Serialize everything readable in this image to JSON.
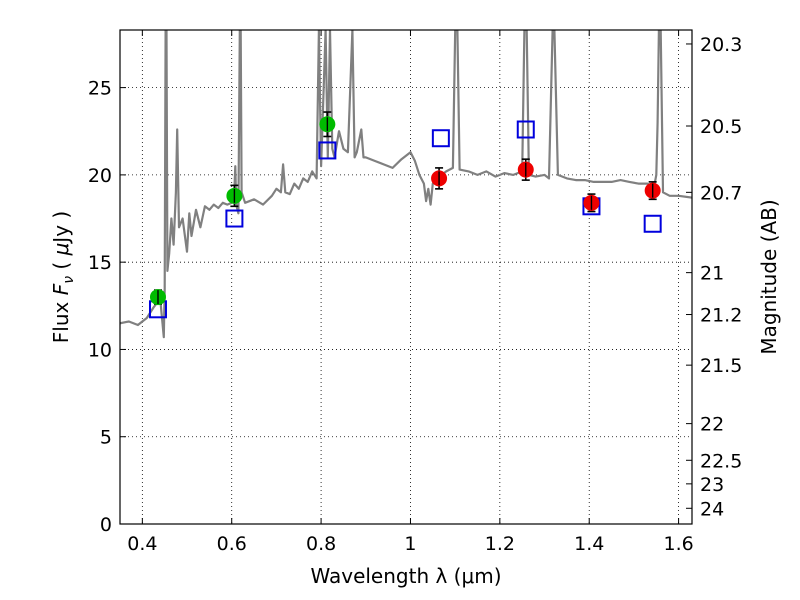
{
  "chart_data": {
    "type": "scatter",
    "xlabel": "Wavelength  λ (μm)",
    "ylabel": "Flux  F_ν  ( μJy )",
    "ylabel_parts": [
      "Flux  ",
      "F",
      "ν",
      "  (  ",
      "μ",
      "Jy )"
    ],
    "ylabel_right": "Magnitude (AB)",
    "xlim": [
      0.35,
      1.63
    ],
    "ylim": [
      0,
      28.3
    ],
    "grid": true,
    "x_ticks": [
      0.4,
      0.6,
      0.8,
      1.0,
      1.2,
      1.4,
      1.6
    ],
    "x_tick_labels": [
      "0.4",
      "0.6",
      "0.8",
      "1",
      "1.2",
      "1.4",
      "1.6"
    ],
    "y_ticks": [
      0,
      5,
      10,
      15,
      20,
      25
    ],
    "y_tick_labels": [
      "0",
      "5",
      "10",
      "15",
      "20",
      "25"
    ],
    "right_ticks": [
      {
        "label": "20.3",
        "flux": 27.5
      },
      {
        "label": "20.5",
        "flux": 22.8
      },
      {
        "label": "20.7",
        "flux": 19.0
      },
      {
        "label": "21",
        "flux": 14.4
      },
      {
        "label": "21.2",
        "flux": 12.0
      },
      {
        "label": "21.5",
        "flux": 9.1
      },
      {
        "label": "22",
        "flux": 5.75
      },
      {
        "label": "22.5",
        "flux": 3.65
      },
      {
        "label": "23",
        "flux": 2.3
      },
      {
        "label": "24",
        "flux": 0.9
      }
    ],
    "series": [
      {
        "marker": "circle",
        "color": "#00bb00",
        "points": [
          {
            "x": 0.435,
            "y": 13.0,
            "err": 0.4
          },
          {
            "x": 0.606,
            "y": 18.8,
            "err": 0.6
          },
          {
            "x": 0.814,
            "y": 22.9,
            "err": 0.7
          }
        ]
      },
      {
        "marker": "circle",
        "color": "#ee0000",
        "points": [
          {
            "x": 1.064,
            "y": 19.8,
            "err": 0.6
          },
          {
            "x": 1.258,
            "y": 20.3,
            "err": 0.6
          },
          {
            "x": 1.405,
            "y": 18.4,
            "err": 0.5
          },
          {
            "x": 1.542,
            "y": 19.1,
            "err": 0.5
          }
        ]
      },
      {
        "marker": "open-square",
        "color": "#0000dd",
        "points": [
          {
            "x": 0.435,
            "y": 12.3
          },
          {
            "x": 0.606,
            "y": 17.5
          },
          {
            "x": 0.814,
            "y": 21.4
          },
          {
            "x": 1.068,
            "y": 22.1
          },
          {
            "x": 1.258,
            "y": 22.6
          },
          {
            "x": 1.405,
            "y": 18.2
          },
          {
            "x": 1.542,
            "y": 17.2
          }
        ]
      },
      {
        "marker": "line",
        "color": "#808080",
        "points": [
          [
            0.35,
            11.5
          ],
          [
            0.37,
            11.6
          ],
          [
            0.39,
            11.4
          ],
          [
            0.4,
            11.6
          ],
          [
            0.41,
            11.8
          ],
          [
            0.425,
            12.4
          ],
          [
            0.44,
            12.9
          ],
          [
            0.445,
            11.5
          ],
          [
            0.448,
            10.7
          ],
          [
            0.45,
            13.5
          ],
          [
            0.452,
            28.3
          ],
          [
            0.454,
            28.3
          ],
          [
            0.456,
            14.5
          ],
          [
            0.46,
            15.5
          ],
          [
            0.465,
            17.5
          ],
          [
            0.47,
            16.0
          ],
          [
            0.475,
            19.0
          ],
          [
            0.478,
            22.6
          ],
          [
            0.482,
            17.0
          ],
          [
            0.49,
            17.5
          ],
          [
            0.5,
            15.6
          ],
          [
            0.505,
            17.8
          ],
          [
            0.51,
            16.5
          ],
          [
            0.52,
            18.0
          ],
          [
            0.53,
            17.0
          ],
          [
            0.54,
            18.2
          ],
          [
            0.55,
            18.0
          ],
          [
            0.56,
            18.3
          ],
          [
            0.57,
            18.1
          ],
          [
            0.58,
            18.4
          ],
          [
            0.59,
            18.3
          ],
          [
            0.6,
            18.4
          ],
          [
            0.605,
            18.5
          ],
          [
            0.608,
            20.5
          ],
          [
            0.61,
            18.3
          ],
          [
            0.615,
            17.8
          ],
          [
            0.618,
            28.3
          ],
          [
            0.62,
            28.3
          ],
          [
            0.622,
            19.0
          ],
          [
            0.63,
            18.4
          ],
          [
            0.65,
            18.6
          ],
          [
            0.67,
            18.3
          ],
          [
            0.69,
            18.8
          ],
          [
            0.7,
            19.2
          ],
          [
            0.71,
            19.0
          ],
          [
            0.715,
            20.6
          ],
          [
            0.72,
            19.0
          ],
          [
            0.73,
            18.9
          ],
          [
            0.74,
            19.5
          ],
          [
            0.75,
            19.2
          ],
          [
            0.76,
            19.8
          ],
          [
            0.77,
            19.6
          ],
          [
            0.78,
            20.2
          ],
          [
            0.79,
            19.8
          ],
          [
            0.795,
            28.3
          ],
          [
            0.8,
            20.5
          ],
          [
            0.81,
            28.3
          ],
          [
            0.815,
            21.0
          ],
          [
            0.82,
            28.3
          ],
          [
            0.825,
            21.5
          ],
          [
            0.83,
            21.0
          ],
          [
            0.84,
            22.5
          ],
          [
            0.85,
            21.5
          ],
          [
            0.86,
            21.3
          ],
          [
            0.87,
            28.3
          ],
          [
            0.875,
            21.0
          ],
          [
            0.88,
            21.3
          ],
          [
            0.89,
            22.6
          ],
          [
            0.895,
            21.0
          ],
          [
            0.9,
            21.0
          ],
          [
            0.92,
            20.8
          ],
          [
            0.94,
            20.6
          ],
          [
            0.96,
            20.4
          ],
          [
            0.98,
            20.9
          ],
          [
            1.0,
            21.3
          ],
          [
            1.01,
            20.8
          ],
          [
            1.02,
            20.0
          ],
          [
            1.03,
            19.5
          ],
          [
            1.035,
            18.5
          ],
          [
            1.04,
            19.2
          ],
          [
            1.045,
            18.3
          ],
          [
            1.05,
            19.5
          ],
          [
            1.06,
            19.8
          ],
          [
            1.07,
            20.0
          ],
          [
            1.08,
            20.2
          ],
          [
            1.095,
            20.4
          ],
          [
            1.1,
            28.3
          ],
          [
            1.105,
            28.3
          ],
          [
            1.11,
            20.3
          ],
          [
            1.13,
            20.2
          ],
          [
            1.15,
            20.0
          ],
          [
            1.17,
            20.2
          ],
          [
            1.19,
            19.9
          ],
          [
            1.21,
            20.1
          ],
          [
            1.23,
            20.0
          ],
          [
            1.25,
            20.2
          ],
          [
            1.255,
            28.3
          ],
          [
            1.26,
            28.3
          ],
          [
            1.265,
            20.0
          ],
          [
            1.28,
            19.9
          ],
          [
            1.3,
            20.0
          ],
          [
            1.31,
            19.8
          ],
          [
            1.318,
            28.3
          ],
          [
            1.322,
            28.3
          ],
          [
            1.33,
            20.0
          ],
          [
            1.35,
            19.8
          ],
          [
            1.37,
            19.7
          ],
          [
            1.39,
            19.7
          ],
          [
            1.41,
            19.6
          ],
          [
            1.43,
            19.6
          ],
          [
            1.45,
            19.6
          ],
          [
            1.47,
            19.7
          ],
          [
            1.49,
            19.6
          ],
          [
            1.51,
            19.5
          ],
          [
            1.53,
            19.5
          ],
          [
            1.545,
            19.3
          ],
          [
            1.55,
            20.0
          ],
          [
            1.553,
            23.0
          ],
          [
            1.556,
            28.3
          ],
          [
            1.56,
            28.3
          ],
          [
            1.565,
            19.0
          ],
          [
            1.58,
            18.8
          ],
          [
            1.6,
            18.8
          ],
          [
            1.63,
            18.7
          ]
        ]
      }
    ]
  }
}
